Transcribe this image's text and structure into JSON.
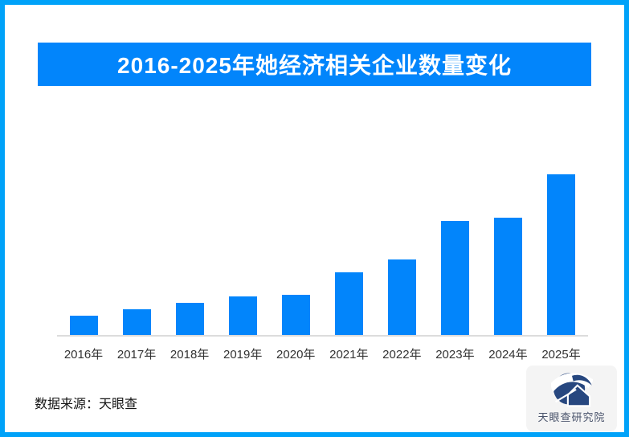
{
  "page": {
    "border_color": "#00a2f9",
    "background": "#ffffff"
  },
  "header": {
    "title": "2016-2025年她经济相关企业数量变化",
    "banner_color": "#0285fb",
    "title_color": "#ffffff"
  },
  "chart_data": {
    "type": "bar",
    "title": "2016-2025年她经济相关企业数量变化",
    "categories": [
      "2016年",
      "2017年",
      "2018年",
      "2019年",
      "2020年",
      "2021年",
      "2022年",
      "2023年",
      "2024年",
      "2025年"
    ],
    "values": [
      12,
      16,
      20,
      24,
      25,
      39,
      47,
      71,
      73,
      100
    ],
    "value_note": "柱体无数值标注；values为按柱高估计的相对值（最高柱2025年=100）",
    "xlabel": "",
    "ylabel": "",
    "ylim": [
      0,
      100
    ],
    "grid": "off",
    "legend": "none",
    "bar_color": "#0285fb",
    "axis_line_color": "#dcdcdc",
    "tick_label_color": "#333333"
  },
  "footer": {
    "source_label": "数据来源：天眼查"
  },
  "logo_badge": {
    "text": "天眼查研究院",
    "background": "#f4f4f4",
    "logo_color": "#27477f",
    "text_color": "#49536b"
  }
}
